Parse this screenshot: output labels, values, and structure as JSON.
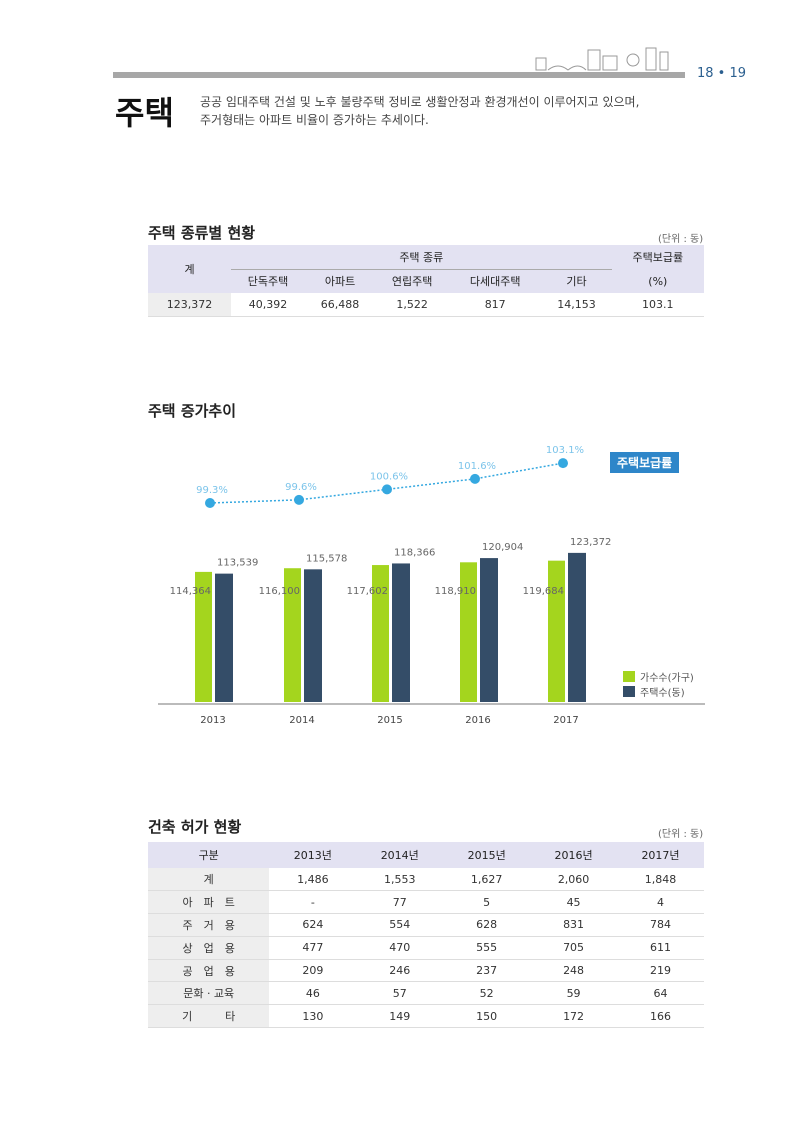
{
  "header": {
    "page_numbers": "18 • 19",
    "title": "주택",
    "intro": [
      "공공 임대주택 건설 및 노후 불량주택 정비로 생활안정과 환경개선이 이루어지고 있으며,",
      "주거형태는 아파트 비율이 증가하는 추세이다."
    ]
  },
  "table1": {
    "title": "주택 종류별 현황",
    "unit": "(단위 : 동)",
    "col_total": "계",
    "group": "주택 종류",
    "types": [
      "단독주택",
      "아파트",
      "연립주택",
      "다세대주택",
      "기타"
    ],
    "rate_header": "주택보급률",
    "rate_unit": "(%)",
    "values": [
      "123,372",
      "40,392",
      "66,488",
      "1,522",
      "817",
      "14,153",
      "103.1"
    ]
  },
  "chart_title": "주택 증가추이",
  "chart_data": {
    "type": "bar+line",
    "categories": [
      "2013",
      "2014",
      "2015",
      "2016",
      "2017"
    ],
    "series": [
      {
        "name": "가수수(가구)",
        "color": "#a4d51e",
        "values": [
          114364,
          116100,
          117602,
          118910,
          119684
        ],
        "labels": [
          "114,364",
          "116,100",
          "117,602",
          "118,910",
          "119,684"
        ]
      },
      {
        "name": "주택수(동)",
        "color": "#344d68",
        "values": [
          113539,
          115578,
          118366,
          120904,
          123372
        ],
        "labels": [
          "113,539",
          "115,578",
          "118,366",
          "120,904",
          "123,372"
        ]
      },
      {
        "name": "주택보급률",
        "type": "line",
        "color": "#35a8e0",
        "values": [
          99.3,
          99.6,
          100.6,
          101.6,
          103.1
        ],
        "labels": [
          "99.3%",
          "99.6%",
          "100.6%",
          "101.6%",
          "103.1%"
        ]
      }
    ],
    "legend_placement": "right"
  },
  "table2": {
    "title": "건축 허가 현황",
    "unit": "(단위 : 동)",
    "headers": [
      "구분",
      "2013년",
      "2014년",
      "2015년",
      "2016년",
      "2017년"
    ],
    "rows": [
      [
        "계",
        "1,486",
        "1,553",
        "1,627",
        "2,060",
        "1,848"
      ],
      [
        "아　파　트",
        "-",
        "77",
        "5",
        "45",
        "4"
      ],
      [
        "주　거　용",
        "624",
        "554",
        "628",
        "831",
        "784"
      ],
      [
        "상　업　용",
        "477",
        "470",
        "555",
        "705",
        "611"
      ],
      [
        "공　업　용",
        "209",
        "246",
        "237",
        "248",
        "219"
      ],
      [
        "문화 · 교육",
        "46",
        "57",
        "52",
        "59",
        "64"
      ],
      [
        "기　　　타",
        "130",
        "149",
        "150",
        "172",
        "166"
      ]
    ]
  }
}
